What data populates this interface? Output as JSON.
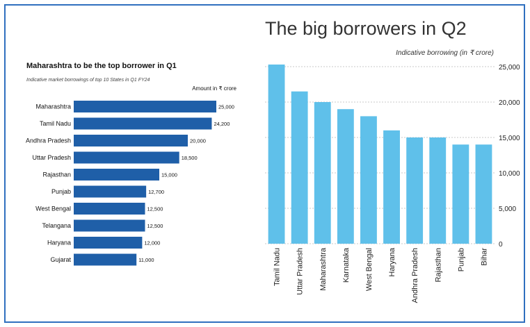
{
  "chart_data": [
    {
      "type": "bar",
      "orientation": "horizontal",
      "title": "Maharashtra to be the top borrower in Q1",
      "subtitle": "Indicative market borrowings of top 10 States in Q1 FY24",
      "unit_label": "Amount in ₹ crore",
      "categories": [
        "Maharashtra",
        "Tamil Nadu",
        "Andhra Pradesh",
        "Uttar Pradesh",
        "Rajasthan",
        "Punjab",
        "West Bengal",
        "Telangana",
        "Haryana",
        "Gujarat"
      ],
      "values": [
        25000,
        24200,
        20000,
        18500,
        15000,
        12700,
        12500,
        12500,
        12000,
        11000
      ],
      "value_labels": [
        "25,000",
        "24,200",
        "20,000",
        "18,500",
        "15,000",
        "12,700",
        "12,500",
        "12,500",
        "12,000",
        "11,000"
      ],
      "xlim": [
        0,
        25000
      ],
      "color": "#1f5fa8",
      "grid": false
    },
    {
      "type": "bar",
      "orientation": "vertical",
      "title": "The big borrowers in Q2",
      "unit_label": "Indicative borrowing (in ₹ crore)",
      "categories": [
        "Tamil Nadu",
        "Uttar Pradesh",
        "Maharashtra",
        "Karnataka",
        "West Bengal",
        "Haryana",
        "Andhra Pradesh",
        "Rajasthan",
        "Punjab",
        "Bihar"
      ],
      "values": [
        25300,
        21500,
        20000,
        19000,
        18000,
        16000,
        15000,
        15000,
        14000,
        14000
      ],
      "ylim": [
        0,
        25000
      ],
      "y_ticks": [
        0,
        5000,
        10000,
        15000,
        20000,
        25000
      ],
      "y_tick_labels": [
        "0",
        "5,000",
        "10,000",
        "15,000",
        "20,000",
        "25,000"
      ],
      "y_axis_position": "right",
      "color": "#5fc0ea",
      "grid": true
    }
  ]
}
